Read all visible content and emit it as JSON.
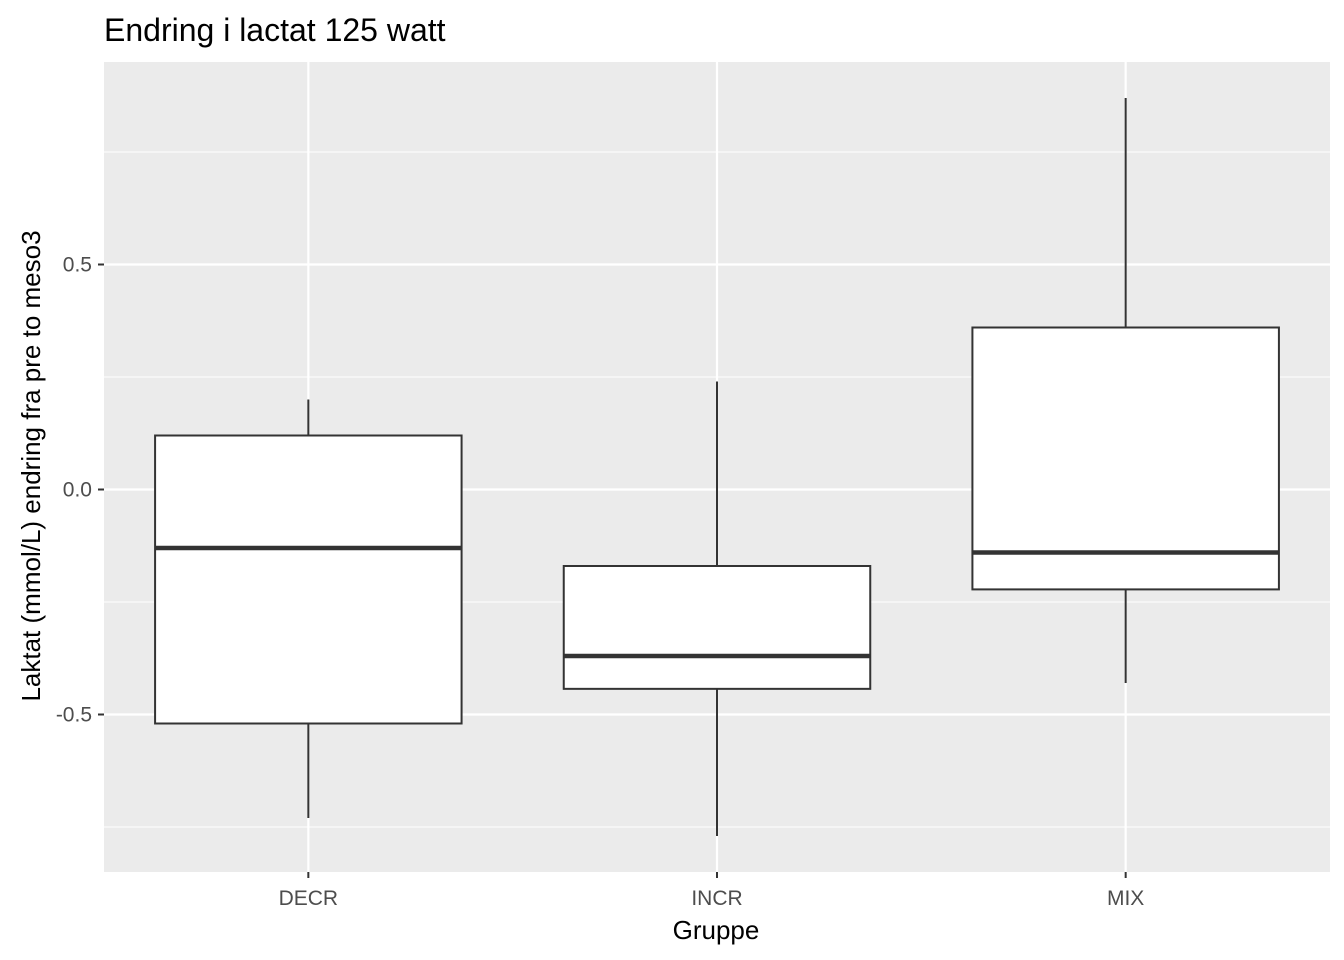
{
  "chart_data": {
    "type": "boxplot",
    "title": "Endring i lactat 125 watt",
    "xlabel": "Gruppe",
    "ylabel": "Laktat (mmol/L) endring fra pre to meso3",
    "categories": [
      "DECR",
      "INCR",
      "MIX"
    ],
    "boxes": [
      {
        "category": "DECR",
        "whisker_low": -0.73,
        "q1": -0.52,
        "median": -0.13,
        "q3": 0.12,
        "whisker_high": 0.2
      },
      {
        "category": "INCR",
        "whisker_low": -0.77,
        "q1": -0.443,
        "median": -0.37,
        "q3": -0.17,
        "whisker_high": 0.24
      },
      {
        "category": "MIX",
        "whisker_low": -0.43,
        "q1": -0.222,
        "median": -0.14,
        "q3": 0.36,
        "whisker_high": 0.87
      }
    ],
    "yticks": [
      -0.5,
      0.0,
      0.5
    ],
    "ytick_labels": [
      "-0.5",
      "0.0",
      "0.5"
    ],
    "ylim": [
      -0.85,
      0.95
    ],
    "grid": true,
    "colors": {
      "panel": "#ebebeb",
      "grid": "#ffffff",
      "box_fill": "#ffffff",
      "box_stroke": "#333333"
    }
  }
}
